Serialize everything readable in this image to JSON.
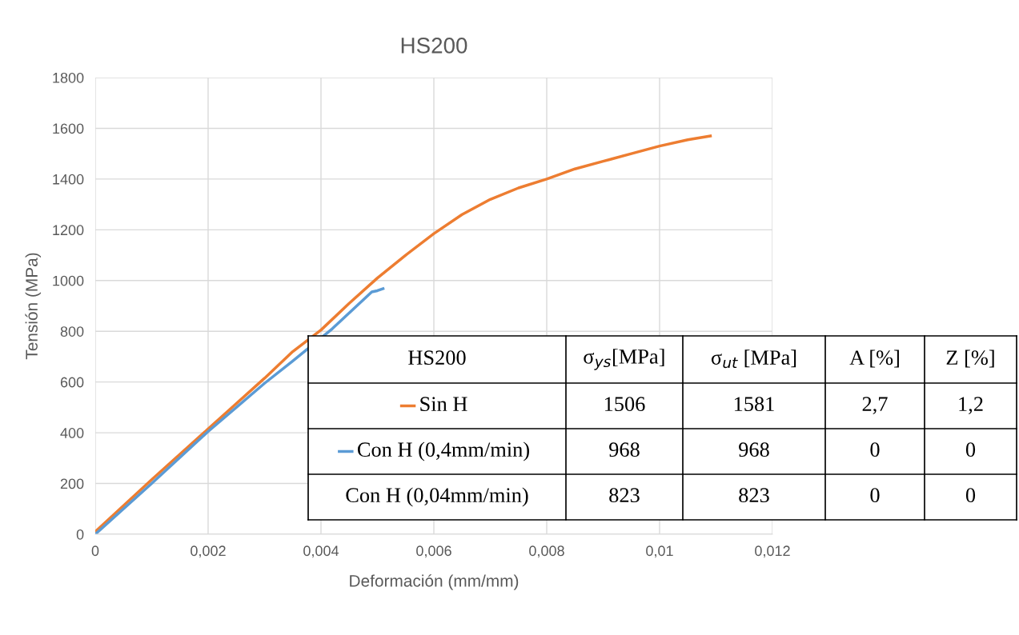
{
  "chart_data": {
    "type": "line",
    "title": "HS200",
    "xlabel": "Deformación (mm/mm)",
    "ylabel": "Tensión (MPa)",
    "xlim": [
      0,
      0.012
    ],
    "xticks": [
      {
        "value": 0,
        "label": "0"
      },
      {
        "value": 0.002,
        "label": "0,002"
      },
      {
        "value": 0.004,
        "label": "0,004"
      },
      {
        "value": 0.006,
        "label": "0,006"
      },
      {
        "value": 0.008,
        "label": "0,008"
      },
      {
        "value": 0.01,
        "label": "0,01"
      },
      {
        "value": 0.012,
        "label": "0,012"
      }
    ],
    "ylim": [
      0,
      1800
    ],
    "yticks": [
      0,
      200,
      400,
      600,
      800,
      1000,
      1200,
      1400,
      1600,
      1800
    ],
    "grid": true,
    "legend": "bottom right",
    "series": [
      {
        "name": "Sin H",
        "color": "#ed7d31",
        "x": [
          0,
          0.001,
          0.002,
          0.003,
          0.0035,
          0.004,
          0.0045,
          0.005,
          0.0055,
          0.006,
          0.0065,
          0.007,
          0.0075,
          0.008,
          0.0085,
          0.009,
          0.0095,
          0.01,
          0.0105,
          0.0109
        ],
        "values": [
          10,
          215,
          415,
          615,
          720,
          805,
          910,
          1010,
          1100,
          1185,
          1260,
          1320,
          1365,
          1400,
          1440,
          1470,
          1500,
          1530,
          1555,
          1570
        ]
      },
      {
        "name": "Con H (0,4mm/min)",
        "color": "#5b9bd5",
        "x": [
          0,
          0.001,
          0.002,
          0.003,
          0.0035,
          0.0042,
          0.0049,
          0.005,
          0.0051
        ],
        "values": [
          0,
          200,
          405,
          595,
          683,
          810,
          955,
          960,
          968
        ]
      }
    ],
    "annotations": [
      "HS200",
      "σ$_{ys}$[MPa]",
      "σ$_{ut}$ [MPa]",
      "A [%]",
      "Z [%]",
      "1506",
      "1581",
      "2,7",
      "1,2",
      "968",
      "968",
      "0",
      "0",
      "Con H (0,04mm/min)",
      "823",
      "823",
      "0",
      "0"
    ]
  }
}
